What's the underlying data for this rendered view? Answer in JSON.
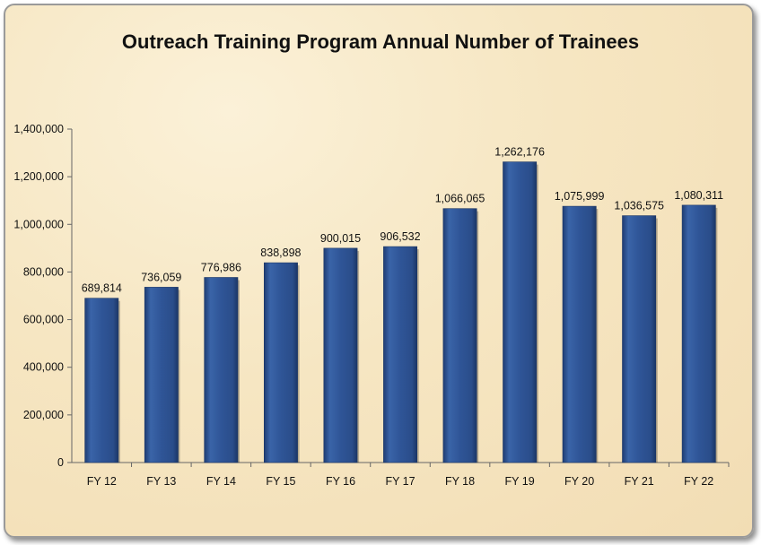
{
  "chart_data": {
    "type": "bar",
    "title": "Outreach Training Program Annual Number of Trainees",
    "categories": [
      "FY 12",
      "FY 13",
      "FY 14",
      "FY 15",
      "FY 16",
      "FY 17",
      "FY 18",
      "FY 19",
      "FY 20",
      "FY 21",
      "FY 22"
    ],
    "values": [
      689814,
      736059,
      776986,
      838898,
      900015,
      906532,
      1066065,
      1262176,
      1075999,
      1036575,
      1080311
    ],
    "value_labels": [
      "689,814",
      "736,059",
      "776,986",
      "838,898",
      "900,015",
      "906,532",
      "1,066,065",
      "1,262,176",
      "1,075,999",
      "1,036,575",
      "1,080,311"
    ],
    "ylim": [
      0,
      1400000
    ],
    "yticks": [
      0,
      200000,
      400000,
      600000,
      800000,
      1000000,
      1200000,
      1400000
    ],
    "ytick_labels": [
      "0",
      "200,000",
      "400,000",
      "600,000",
      "800,000",
      "1,000,000",
      "1,200,000",
      "1,400,000"
    ],
    "xlabel": "",
    "ylabel": "",
    "grid": false,
    "legend": "none",
    "bar_color": "#2f5597"
  }
}
